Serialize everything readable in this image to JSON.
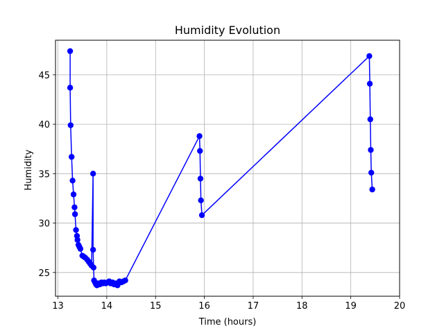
{
  "chart_data": {
    "type": "line",
    "title": "Humidity Evolution",
    "xlabel": "Time (hours)",
    "ylabel": "Humidity",
    "xlim": [
      12.95,
      20
    ],
    "ylim": [
      22.6,
      48.5
    ],
    "xticks": [
      13,
      14,
      15,
      16,
      17,
      18,
      19,
      20
    ],
    "yticks": [
      25,
      30,
      35,
      40,
      45
    ],
    "grid": true,
    "series": [
      {
        "color": "#0000ff",
        "marker": "circle",
        "x": [
          13.25,
          13.25,
          13.26,
          13.28,
          13.3,
          13.32,
          13.34,
          13.35,
          13.37,
          13.39,
          13.4,
          13.42,
          13.44,
          13.46,
          13.5,
          13.53,
          13.56,
          13.6,
          13.63,
          13.66,
          13.69,
          13.72,
          13.72,
          13.73,
          13.74,
          13.76,
          13.78,
          13.8,
          13.83,
          13.86,
          13.89,
          13.92,
          13.95,
          13.98,
          14.02,
          14.05,
          14.08,
          14.12,
          14.15,
          14.18,
          14.22,
          14.26,
          14.3,
          14.34,
          14.38,
          15.9,
          15.91,
          15.92,
          15.93,
          15.95,
          19.38,
          19.39,
          19.4,
          19.41,
          19.42,
          19.44
        ],
        "y": [
          47.4,
          43.7,
          39.9,
          36.7,
          34.3,
          32.9,
          31.6,
          30.9,
          29.3,
          28.7,
          28.3,
          27.8,
          27.6,
          27.4,
          26.7,
          26.6,
          26.5,
          26.3,
          26.1,
          25.9,
          25.7,
          35.0,
          27.3,
          25.5,
          24.2,
          24.0,
          23.8,
          23.7,
          23.9,
          23.8,
          24.0,
          23.9,
          24.0,
          23.9,
          24.0,
          24.1,
          23.9,
          24.0,
          23.8,
          23.9,
          23.7,
          24.1,
          24.0,
          24.1,
          24.2,
          38.8,
          37.3,
          34.5,
          32.3,
          30.8,
          46.9,
          44.1,
          40.5,
          37.4,
          35.1,
          33.4
        ]
      }
    ]
  }
}
